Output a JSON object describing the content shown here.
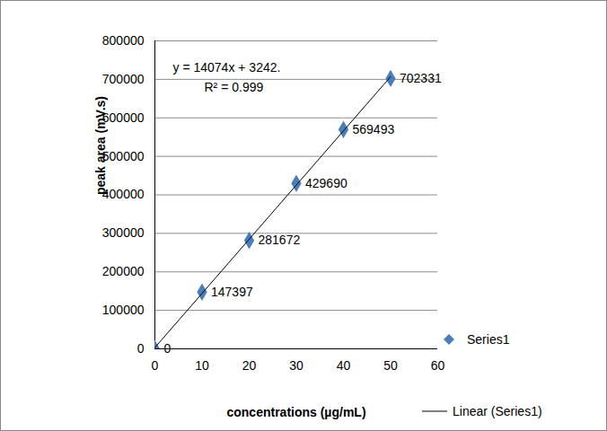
{
  "chart_data": {
    "type": "scatter",
    "x_label": "concentrations (µg/mL)",
    "y_label": "peak area (mV.s)",
    "x": [
      0,
      10,
      20,
      30,
      40,
      50
    ],
    "series": [
      {
        "name": "Series1",
        "type": "scatter",
        "marker": "diamond",
        "color": "#4a7ebb",
        "values": [
          0,
          147397,
          281672,
          429690,
          569493,
          702331
        ]
      },
      {
        "name": "Linear (Series1)",
        "type": "line",
        "line_style": "solid",
        "color": "#000000",
        "values": [
          3242,
          143982,
          284722,
          425462,
          566202,
          706942
        ]
      }
    ],
    "annotations": [
      "y = 14074x + 3242.",
      "R² = 0.999"
    ],
    "xlim": [
      0,
      60
    ],
    "xticks": [
      0,
      10,
      20,
      30,
      40,
      50,
      60
    ],
    "ylim": [
      0,
      800000
    ],
    "yticks": [
      0,
      100000,
      200000,
      300000,
      400000,
      500000,
      600000,
      700000,
      800000
    ],
    "grid": true,
    "data_labels": true,
    "legend": "right"
  }
}
